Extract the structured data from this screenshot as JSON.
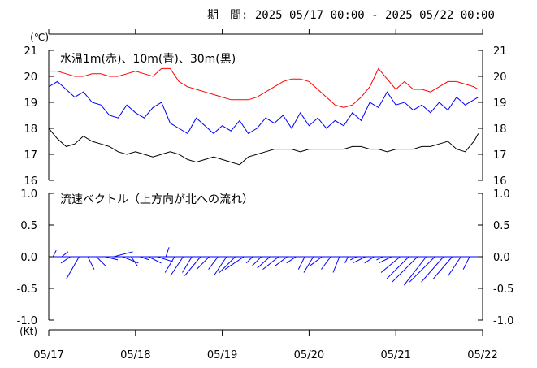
{
  "period": {
    "label": "期　間:",
    "range": "2025 05/17 00:00 - 2025 05/22 00:00"
  },
  "chart_data": [
    {
      "type": "line",
      "title": "水温1m(赤)、10m(青)、30m(黒)",
      "unit": "(℃)",
      "ylim": [
        16,
        21
      ],
      "yticks": [
        "21",
        "20",
        "19",
        "18",
        "17",
        "16"
      ],
      "xlim": [
        "05/17",
        "05/22"
      ],
      "colors": {
        "1m": "#ff0000",
        "10m": "#0000ff",
        "30m": "#000000"
      },
      "series": [
        {
          "key": "1m",
          "name": "赤",
          "color": "#ff0000",
          "x": [
            0,
            0.1,
            0.2,
            0.3,
            0.4,
            0.5,
            0.6,
            0.7,
            0.8,
            0.9,
            1.0,
            1.1,
            1.2,
            1.3,
            1.4,
            1.5,
            1.6,
            1.7,
            1.8,
            1.9,
            2.0,
            2.1,
            2.2,
            2.3,
            2.4,
            2.5,
            2.6,
            2.7,
            2.8,
            2.9,
            3.0,
            3.1,
            3.2,
            3.3,
            3.4,
            3.5,
            3.6,
            3.7,
            3.8,
            3.9,
            4.0,
            4.1,
            4.2,
            4.3,
            4.4,
            4.5,
            4.6,
            4.7,
            4.8,
            4.9,
            4.95
          ],
          "values": [
            20.2,
            20.2,
            20.1,
            20.0,
            20.0,
            20.1,
            20.1,
            20.0,
            20.0,
            20.1,
            20.2,
            20.1,
            20.0,
            20.3,
            20.3,
            19.8,
            19.6,
            19.5,
            19.4,
            19.3,
            19.2,
            19.1,
            19.1,
            19.1,
            19.2,
            19.4,
            19.6,
            19.8,
            19.9,
            19.9,
            19.8,
            19.5,
            19.2,
            18.9,
            18.8,
            18.9,
            19.2,
            19.6,
            20.3,
            19.9,
            19.5,
            19.8,
            19.5,
            19.5,
            19.4,
            19.6,
            19.8,
            19.8,
            19.7,
            19.6,
            19.5
          ]
        },
        {
          "key": "10m",
          "name": "青",
          "color": "#0000ff",
          "x": [
            0,
            0.1,
            0.2,
            0.3,
            0.4,
            0.5,
            0.6,
            0.7,
            0.8,
            0.9,
            1.0,
            1.1,
            1.2,
            1.3,
            1.4,
            1.5,
            1.6,
            1.7,
            1.8,
            1.9,
            2.0,
            2.1,
            2.2,
            2.3,
            2.4,
            2.5,
            2.6,
            2.7,
            2.8,
            2.9,
            3.0,
            3.1,
            3.2,
            3.3,
            3.4,
            3.5,
            3.6,
            3.7,
            3.8,
            3.9,
            4.0,
            4.1,
            4.2,
            4.3,
            4.4,
            4.5,
            4.6,
            4.7,
            4.8,
            4.9,
            4.95
          ],
          "values": [
            19.6,
            19.8,
            19.5,
            19.2,
            19.4,
            19.0,
            18.9,
            18.5,
            18.4,
            18.9,
            18.6,
            18.4,
            18.8,
            19.0,
            18.2,
            18.0,
            17.8,
            18.4,
            18.1,
            17.8,
            18.1,
            17.9,
            18.3,
            17.8,
            18.0,
            18.4,
            18.2,
            18.5,
            18.0,
            18.6,
            18.1,
            18.4,
            18.0,
            18.3,
            18.1,
            18.6,
            18.3,
            19.0,
            18.8,
            19.4,
            18.9,
            19.0,
            18.7,
            18.9,
            18.6,
            19.0,
            18.7,
            19.2,
            18.9,
            19.1,
            19.2
          ]
        },
        {
          "key": "30m",
          "name": "黒",
          "color": "#000000",
          "x": [
            0,
            0.1,
            0.2,
            0.3,
            0.4,
            0.5,
            0.6,
            0.7,
            0.8,
            0.9,
            1.0,
            1.1,
            1.2,
            1.3,
            1.4,
            1.5,
            1.6,
            1.7,
            1.8,
            1.9,
            2.0,
            2.1,
            2.2,
            2.3,
            2.4,
            2.5,
            2.6,
            2.7,
            2.8,
            2.9,
            3.0,
            3.1,
            3.2,
            3.3,
            3.4,
            3.5,
            3.6,
            3.7,
            3.8,
            3.9,
            4.0,
            4.1,
            4.2,
            4.3,
            4.4,
            4.5,
            4.6,
            4.7,
            4.8,
            4.9,
            4.95
          ],
          "values": [
            18.0,
            17.6,
            17.3,
            17.4,
            17.7,
            17.5,
            17.4,
            17.3,
            17.1,
            17.0,
            17.1,
            17.0,
            16.9,
            17.0,
            17.1,
            17.0,
            16.8,
            16.7,
            16.8,
            16.9,
            16.8,
            16.7,
            16.6,
            16.9,
            17.0,
            17.1,
            17.2,
            17.2,
            17.2,
            17.1,
            17.2,
            17.2,
            17.2,
            17.2,
            17.2,
            17.3,
            17.3,
            17.2,
            17.2,
            17.1,
            17.2,
            17.2,
            17.2,
            17.3,
            17.3,
            17.4,
            17.5,
            17.2,
            17.1,
            17.5,
            17.8
          ]
        }
      ]
    },
    {
      "type": "vector",
      "title": "流速ベクトル（上方向が北への流れ）",
      "unit": "(Kt)",
      "ylim": [
        -1.0,
        1.0
      ],
      "yticks": [
        "1.0",
        "0.5",
        "0.0",
        "-0.5",
        "-1.0"
      ],
      "color": "#0000ff",
      "x": [
        0.05,
        0.15,
        0.25,
        0.35,
        0.45,
        0.55,
        0.65,
        0.75,
        0.85,
        0.95,
        1.05,
        1.15,
        1.25,
        1.35,
        1.45,
        1.55,
        1.65,
        1.75,
        1.85,
        1.95,
        2.05,
        2.15,
        2.25,
        2.35,
        2.45,
        2.55,
        2.65,
        2.75,
        2.85,
        2.95,
        3.05,
        3.15,
        3.25,
        3.35,
        3.45,
        3.55,
        3.65,
        3.75,
        3.85,
        3.95,
        4.05,
        4.15,
        4.25,
        4.35,
        4.45,
        4.55,
        4.65,
        4.75,
        4.85
      ],
      "u": [
        0.05,
        0.1,
        -0.15,
        -0.2,
        0.1,
        0.15,
        0.2,
        0.3,
        0.25,
        0.1,
        0.15,
        0.2,
        0.25,
        0.05,
        -0.15,
        -0.2,
        -0.15,
        -0.25,
        -0.2,
        -0.15,
        -0.2,
        -0.25,
        -0.3,
        -0.1,
        -0.15,
        -0.2,
        -0.25,
        -0.2,
        -0.15,
        -0.1,
        -0.15,
        -0.2,
        -0.15,
        -0.1,
        -0.05,
        -0.1,
        -0.2,
        -0.15,
        -0.1,
        -0.2,
        -0.3,
        -0.35,
        -0.4,
        -0.35,
        -0.4,
        -0.35,
        -0.3,
        -0.2,
        -0.1
      ],
      "v": [
        0.1,
        0.08,
        -0.1,
        -0.35,
        -0.2,
        -0.15,
        -0.05,
        0.08,
        -0.1,
        -0.15,
        -0.05,
        -0.1,
        -0.08,
        0.15,
        -0.25,
        -0.3,
        -0.25,
        -0.3,
        -0.2,
        -0.2,
        -0.3,
        -0.25,
        -0.2,
        -0.1,
        -0.15,
        -0.18,
        -0.2,
        -0.15,
        -0.1,
        -0.2,
        -0.25,
        -0.15,
        -0.2,
        -0.25,
        -0.1,
        -0.05,
        -0.1,
        -0.1,
        -0.05,
        -0.1,
        -0.25,
        -0.35,
        -0.4,
        -0.45,
        -0.4,
        -0.4,
        -0.35,
        -0.3,
        -0.2
      ]
    }
  ],
  "x_axis": {
    "ticks": [
      "05/17",
      "05/18",
      "05/19",
      "05/20",
      "05/21",
      "05/22"
    ]
  }
}
